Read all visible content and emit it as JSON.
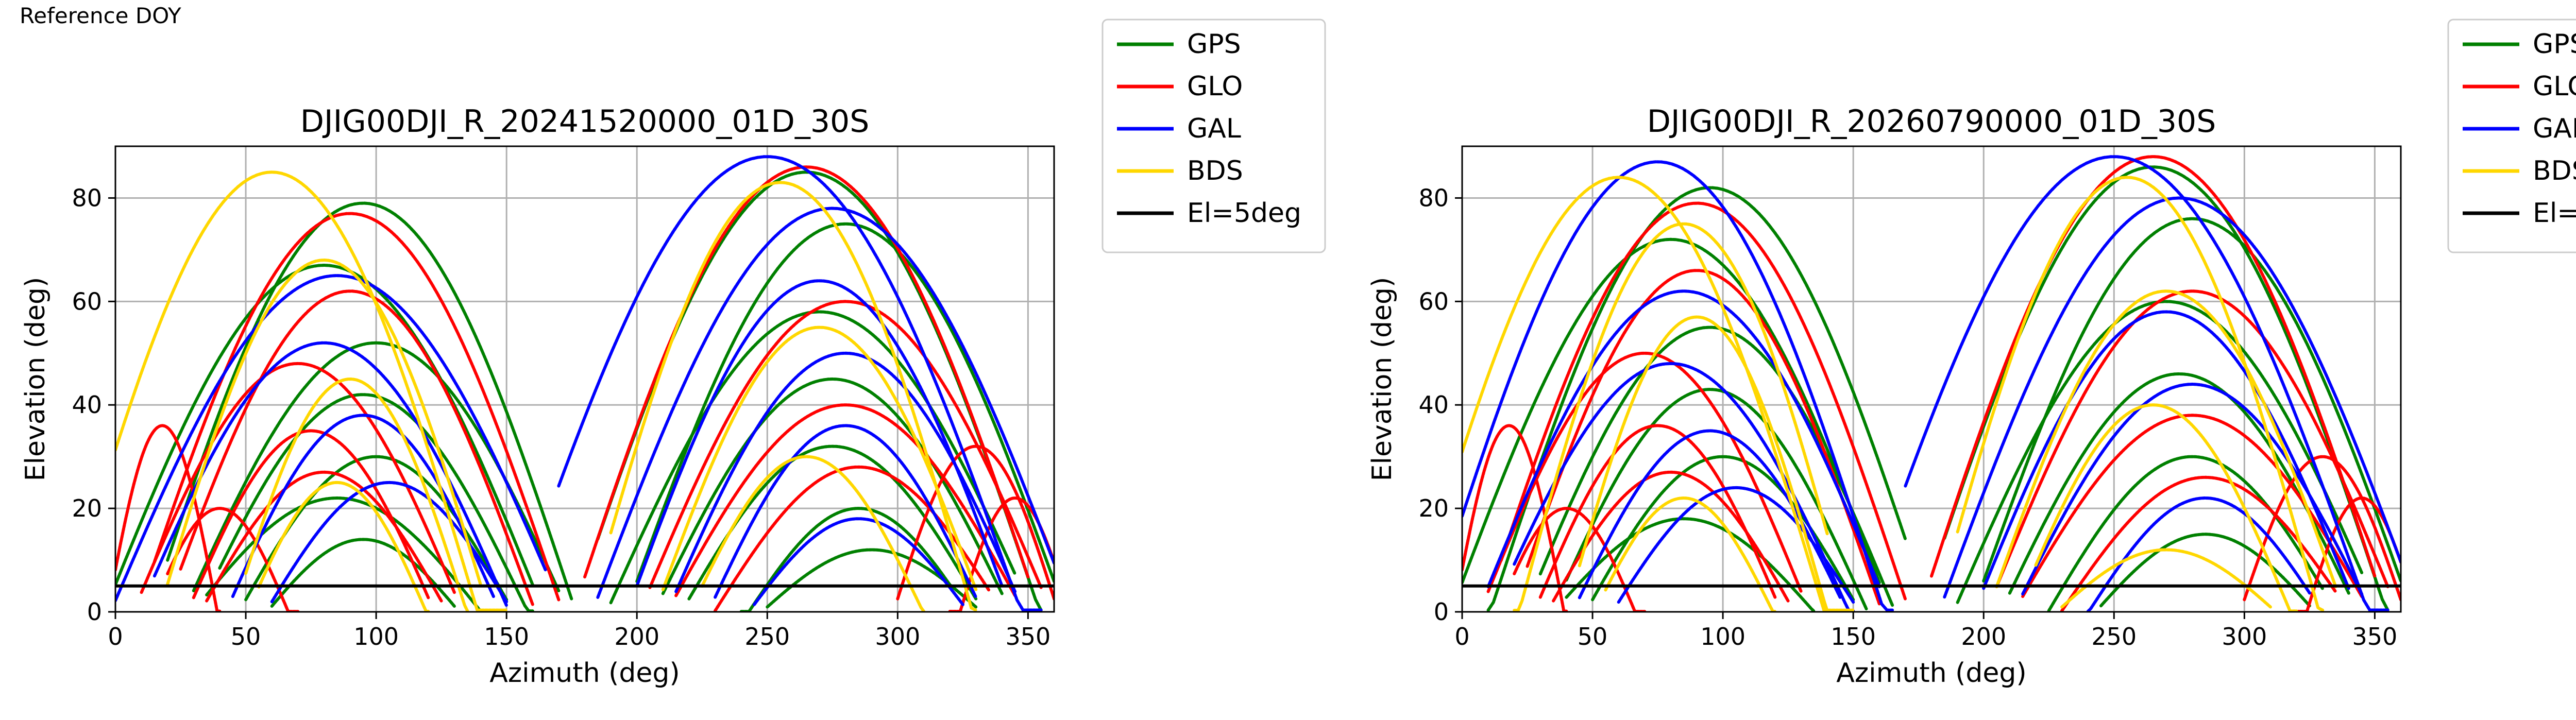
{
  "page": {
    "corner_label": "Reference DOY"
  },
  "colors": {
    "GPS": "#008000",
    "GLO": "#ff0000",
    "GAL": "#0000ff",
    "BDS": "#ffd700",
    "El=5deg": "#000000"
  },
  "chart_data": [
    {
      "type": "scatter",
      "title": "DJIG00DJI_R_20241520000_01D_30S",
      "xlabel": "Azimuth (deg)",
      "ylabel": "Elevation (deg)",
      "xlim": [
        0,
        360
      ],
      "ylim": [
        0,
        90
      ],
      "xticks": [
        0,
        50,
        100,
        150,
        200,
        250,
        300,
        350
      ],
      "yticks": [
        0,
        20,
        40,
        60,
        80
      ],
      "grid": true,
      "legend_position": "outside upper right",
      "cutoff_line": {
        "name": "El=5deg",
        "y": 5
      },
      "series": [
        {
          "name": "GPS",
          "color": "#008000",
          "tracks": [
            {
              "start_az": 20,
              "end_az": 175,
              "peak_az": 95,
              "peak_el": 79
            },
            {
              "start_az": 0,
              "end_az": 160,
              "peak_az": 80,
              "peak_el": 67
            },
            {
              "start_az": 30,
              "end_az": 170,
              "peak_az": 100,
              "peak_el": 52
            },
            {
              "start_az": 40,
              "end_az": 160,
              "peak_az": 95,
              "peak_el": 42
            },
            {
              "start_az": 50,
              "end_az": 150,
              "peak_az": 100,
              "peak_el": 30
            },
            {
              "start_az": 35,
              "end_az": 140,
              "peak_az": 85,
              "peak_el": 22
            },
            {
              "start_az": 60,
              "end_az": 130,
              "peak_az": 95,
              "peak_el": 14
            },
            {
              "start_az": 185,
              "end_az": 355,
              "peak_az": 265,
              "peak_el": 85
            },
            {
              "start_az": 200,
              "end_az": 360,
              "peak_az": 280,
              "peak_el": 75
            },
            {
              "start_az": 190,
              "end_az": 345,
              "peak_az": 270,
              "peak_el": 58
            },
            {
              "start_az": 210,
              "end_az": 340,
              "peak_az": 275,
              "peak_el": 45
            },
            {
              "start_az": 220,
              "end_az": 330,
              "peak_az": 275,
              "peak_el": 32
            },
            {
              "start_az": 240,
              "end_az": 320,
              "peak_az": 285,
              "peak_el": 20
            },
            {
              "start_az": 250,
              "end_az": 330,
              "peak_az": 290,
              "peak_el": 12
            }
          ]
        },
        {
          "name": "GLO",
          "color": "#ff0000",
          "tracks": [
            {
              "start_az": 15,
              "end_az": 170,
              "peak_az": 90,
              "peak_el": 77
            },
            {
              "start_az": 25,
              "end_az": 160,
              "peak_az": 90,
              "peak_el": 62
            },
            {
              "start_az": 10,
              "end_az": 130,
              "peak_az": 70,
              "peak_el": 48
            },
            {
              "start_az": 30,
              "end_az": 120,
              "peak_az": 75,
              "peak_el": 35
            },
            {
              "start_az": 35,
              "end_az": 125,
              "peak_az": 80,
              "peak_el": 27
            },
            {
              "start_az": 0,
              "end_az": 40,
              "peak_az": 18,
              "peak_el": 36
            },
            {
              "start_az": 20,
              "end_az": 70,
              "peak_az": 40,
              "peak_el": 20
            },
            {
              "start_az": 180,
              "end_az": 350,
              "peak_az": 265,
              "peak_el": 86
            },
            {
              "start_az": 205,
              "end_az": 355,
              "peak_az": 280,
              "peak_el": 60
            },
            {
              "start_az": 215,
              "end_az": 345,
              "peak_az": 280,
              "peak_el": 40
            },
            {
              "start_az": 230,
              "end_az": 335,
              "peak_az": 285,
              "peak_el": 28
            },
            {
              "start_az": 300,
              "end_az": 360,
              "peak_az": 330,
              "peak_el": 32
            },
            {
              "start_az": 320,
              "end_az": 360,
              "peak_az": 345,
              "peak_el": 22
            }
          ]
        },
        {
          "name": "GAL",
          "color": "#0000ff",
          "tracks": [
            {
              "start_az": 0,
              "end_az": 165,
              "peak_az": 85,
              "peak_el": 65
            },
            {
              "start_az": 15,
              "end_az": 150,
              "peak_az": 80,
              "peak_el": 52
            },
            {
              "start_az": 45,
              "end_az": 145,
              "peak_az": 95,
              "peak_el": 38
            },
            {
              "start_az": 60,
              "end_az": 150,
              "peak_az": 105,
              "peak_el": 25
            },
            {
              "start_az": 170,
              "end_az": 355,
              "peak_az": 250,
              "peak_el": 88
            },
            {
              "start_az": 185,
              "end_az": 360,
              "peak_az": 275,
              "peak_el": 78
            },
            {
              "start_az": 200,
              "end_az": 340,
              "peak_az": 270,
              "peak_el": 64
            },
            {
              "start_az": 215,
              "end_az": 345,
              "peak_az": 280,
              "peak_el": 50
            },
            {
              "start_az": 230,
              "end_az": 330,
              "peak_az": 280,
              "peak_el": 36
            },
            {
              "start_az": 245,
              "end_az": 325,
              "peak_az": 285,
              "peak_el": 18
            }
          ]
        },
        {
          "name": "BDS",
          "color": "#ffd700",
          "tracks": [
            {
              "start_az": 0,
              "end_az": 150,
              "peak_az": 60,
              "peak_el": 85
            },
            {
              "start_az": 20,
              "end_az": 140,
              "peak_az": 80,
              "peak_el": 68
            },
            {
              "start_az": 50,
              "end_az": 135,
              "peak_az": 90,
              "peak_el": 45
            },
            {
              "start_az": 55,
              "end_az": 120,
              "peak_az": 85,
              "peak_el": 25
            },
            {
              "start_az": 190,
              "end_az": 330,
              "peak_az": 255,
              "peak_el": 83
            },
            {
              "start_az": 210,
              "end_az": 330,
              "peak_az": 270,
              "peak_el": 55
            },
            {
              "start_az": 225,
              "end_az": 310,
              "peak_az": 265,
              "peak_el": 30
            }
          ]
        }
      ]
    },
    {
      "type": "scatter",
      "title": "DJIG00DJI_R_20260790000_01D_30S",
      "xlabel": "Azimuth (deg)",
      "ylabel": "Elevation (deg)",
      "xlim": [
        0,
        360
      ],
      "ylim": [
        0,
        90
      ],
      "xticks": [
        0,
        50,
        100,
        150,
        200,
        250,
        300,
        350
      ],
      "yticks": [
        0,
        20,
        40,
        60,
        80
      ],
      "grid": true,
      "legend_position": "outside upper right",
      "cutoff_line": {
        "name": "El=5deg",
        "y": 5
      },
      "series": [
        {
          "name": "GPS",
          "color": "#008000",
          "tracks": [
            {
              "start_az": 10,
              "end_az": 170,
              "peak_az": 95,
              "peak_el": 82
            },
            {
              "start_az": 0,
              "end_az": 160,
              "peak_az": 80,
              "peak_el": 72
            },
            {
              "start_az": 30,
              "end_az": 165,
              "peak_az": 95,
              "peak_el": 55
            },
            {
              "start_az": 40,
              "end_az": 155,
              "peak_az": 95,
              "peak_el": 43
            },
            {
              "start_az": 50,
              "end_az": 150,
              "peak_az": 100,
              "peak_el": 30
            },
            {
              "start_az": 40,
              "end_az": 135,
              "peak_az": 85,
              "peak_el": 18
            },
            {
              "start_az": 185,
              "end_az": 355,
              "peak_az": 265,
              "peak_el": 86
            },
            {
              "start_az": 200,
              "end_az": 360,
              "peak_az": 280,
              "peak_el": 76
            },
            {
              "start_az": 190,
              "end_az": 345,
              "peak_az": 270,
              "peak_el": 60
            },
            {
              "start_az": 210,
              "end_az": 340,
              "peak_az": 275,
              "peak_el": 46
            },
            {
              "start_az": 225,
              "end_az": 330,
              "peak_az": 280,
              "peak_el": 30
            },
            {
              "start_az": 245,
              "end_az": 325,
              "peak_az": 285,
              "peak_el": 15
            }
          ]
        },
        {
          "name": "GLO",
          "color": "#ff0000",
          "tracks": [
            {
              "start_az": 15,
              "end_az": 170,
              "peak_az": 90,
              "peak_el": 79
            },
            {
              "start_az": 25,
              "end_az": 160,
              "peak_az": 90,
              "peak_el": 66
            },
            {
              "start_az": 10,
              "end_az": 130,
              "peak_az": 70,
              "peak_el": 50
            },
            {
              "start_az": 30,
              "end_az": 120,
              "peak_az": 75,
              "peak_el": 36
            },
            {
              "start_az": 35,
              "end_az": 125,
              "peak_az": 80,
              "peak_el": 27
            },
            {
              "start_az": 0,
              "end_az": 40,
              "peak_az": 18,
              "peak_el": 36
            },
            {
              "start_az": 20,
              "end_az": 70,
              "peak_az": 40,
              "peak_el": 20
            },
            {
              "start_az": 180,
              "end_az": 350,
              "peak_az": 265,
              "peak_el": 88
            },
            {
              "start_az": 205,
              "end_az": 355,
              "peak_az": 280,
              "peak_el": 62
            },
            {
              "start_az": 215,
              "end_az": 345,
              "peak_az": 280,
              "peak_el": 38
            },
            {
              "start_az": 230,
              "end_az": 335,
              "peak_az": 285,
              "peak_el": 26
            },
            {
              "start_az": 300,
              "end_az": 360,
              "peak_az": 330,
              "peak_el": 30
            },
            {
              "start_az": 320,
              "end_az": 360,
              "peak_az": 345,
              "peak_el": 22
            }
          ]
        },
        {
          "name": "GAL",
          "color": "#0000ff",
          "tracks": [
            {
              "start_az": 0,
              "end_az": 165,
              "peak_az": 75,
              "peak_el": 87
            },
            {
              "start_az": 10,
              "end_az": 160,
              "peak_az": 85,
              "peak_el": 62
            },
            {
              "start_az": 20,
              "end_az": 150,
              "peak_az": 80,
              "peak_el": 48
            },
            {
              "start_az": 45,
              "end_az": 145,
              "peak_az": 95,
              "peak_el": 35
            },
            {
              "start_az": 60,
              "end_az": 150,
              "peak_az": 105,
              "peak_el": 24
            },
            {
              "start_az": 170,
              "end_az": 355,
              "peak_az": 250,
              "peak_el": 88
            },
            {
              "start_az": 185,
              "end_az": 360,
              "peak_az": 275,
              "peak_el": 80
            },
            {
              "start_az": 200,
              "end_az": 340,
              "peak_az": 270,
              "peak_el": 58
            },
            {
              "start_az": 215,
              "end_az": 345,
              "peak_az": 280,
              "peak_el": 44
            },
            {
              "start_az": 240,
              "end_az": 325,
              "peak_az": 285,
              "peak_el": 22
            }
          ]
        },
        {
          "name": "BDS",
          "color": "#ffd700",
          "tracks": [
            {
              "start_az": 0,
              "end_az": 150,
              "peak_az": 60,
              "peak_el": 84
            },
            {
              "start_az": 20,
              "end_az": 140,
              "peak_az": 85,
              "peak_el": 75
            },
            {
              "start_az": 45,
              "end_az": 140,
              "peak_az": 90,
              "peak_el": 57
            },
            {
              "start_az": 55,
              "end_az": 120,
              "peak_az": 85,
              "peak_el": 22
            },
            {
              "start_az": 190,
              "end_az": 330,
              "peak_az": 255,
              "peak_el": 84
            },
            {
              "start_az": 205,
              "end_az": 335,
              "peak_az": 270,
              "peak_el": 62
            },
            {
              "start_az": 220,
              "end_az": 320,
              "peak_az": 265,
              "peak_el": 40
            },
            {
              "start_az": 230,
              "end_az": 310,
              "peak_az": 270,
              "peak_el": 12
            }
          ]
        }
      ]
    }
  ]
}
